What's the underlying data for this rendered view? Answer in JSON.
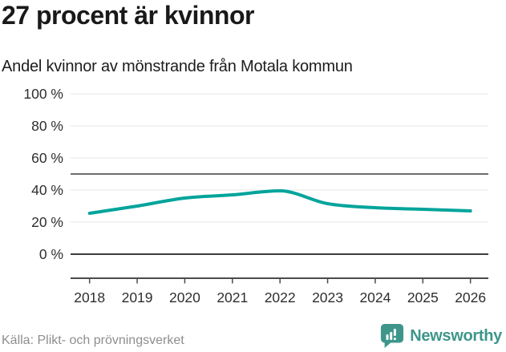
{
  "header": {
    "title": "27 procent är kvinnor",
    "subtitle": "Andel kvinnor av mönstrande från Motala kommun"
  },
  "footer": {
    "source": "Källa: Plikt- och prövningsverket",
    "brand": "Newsworthy"
  },
  "colors": {
    "line": "#00a49b",
    "grid": "#e4e4e4",
    "reference_line": "#6d6d6d",
    "baseline": "#3d3d3d",
    "axis": "#4b4b4b",
    "tick_text": "#2e2e2e",
    "title_text": "#191919",
    "source_text": "#8e8e8e",
    "brand_teal": "#3e968b"
  },
  "chart_data": {
    "type": "line",
    "title": "27 procent är kvinnor",
    "subtitle": "Andel kvinnor av mönstrande från Motala kommun",
    "x": [
      2018,
      2019,
      2020,
      2021,
      2022,
      2023,
      2024,
      2025,
      2026
    ],
    "x_tick_labels": [
      "2018",
      "2019",
      "2020",
      "2021",
      "2022",
      "2023",
      "2024",
      "2025",
      "2026"
    ],
    "series": [
      {
        "name": "Andel kvinnor av mönstrande",
        "values": [
          25.5,
          30,
          35,
          37,
          39.5,
          31.5,
          29,
          28,
          27
        ]
      }
    ],
    "ylim": [
      0,
      100
    ],
    "y_ticks": [
      0,
      20,
      40,
      60,
      80,
      100
    ],
    "y_tick_labels": [
      "0 %",
      "20 %",
      "40 %",
      "60 %",
      "80 %",
      "100 %"
    ],
    "y_tick_suffix": " %",
    "reference_line_y": 50,
    "baseline_y": 0,
    "grid": true,
    "legend": "none"
  }
}
